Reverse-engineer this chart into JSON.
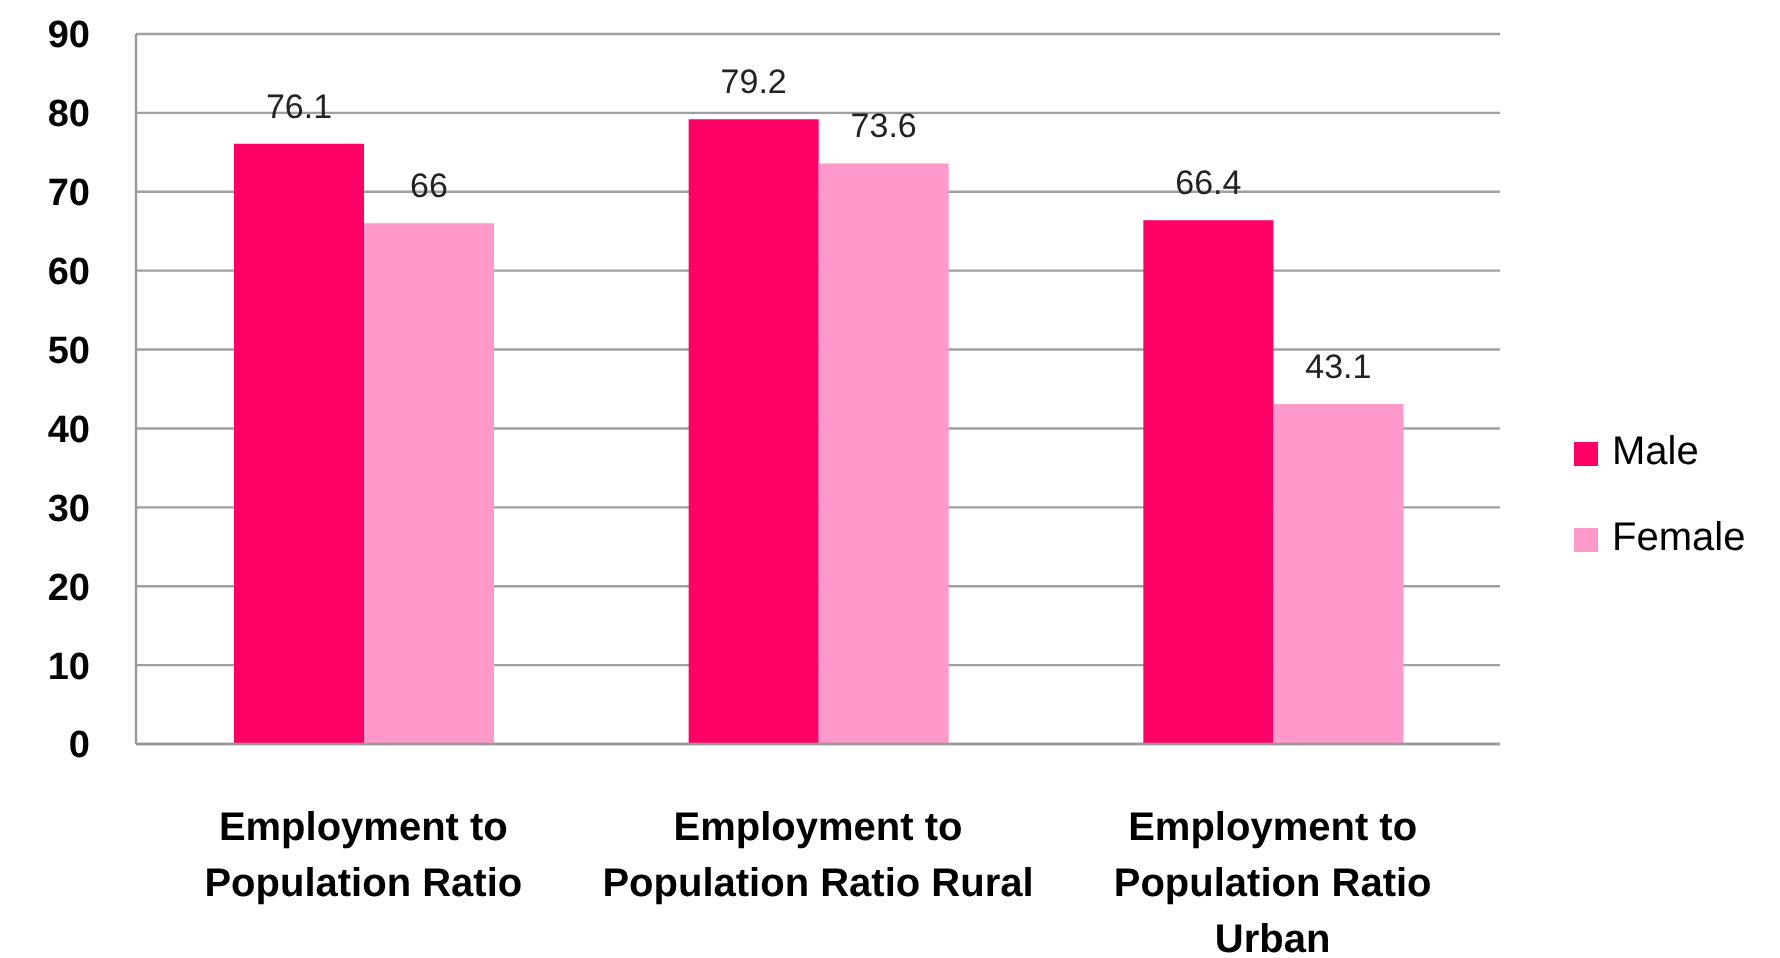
{
  "chart_data": {
    "type": "bar",
    "categories": [
      "Employment to Population Ratio",
      "Employment to Population Ratio Rural",
      "Employment to Population Ratio Urban"
    ],
    "series": [
      {
        "name": "Male",
        "color": "#ff0066",
        "values": [
          76.1,
          79.2,
          66.4
        ]
      },
      {
        "name": "Female",
        "color": "#ff99cc",
        "values": [
          66,
          73.6,
          43.1
        ]
      }
    ],
    "ylim": [
      0,
      90
    ],
    "yticks": [
      0,
      10,
      20,
      30,
      40,
      50,
      60,
      70,
      80,
      90
    ],
    "grid": "y",
    "legend": "right",
    "data_labels": true
  }
}
